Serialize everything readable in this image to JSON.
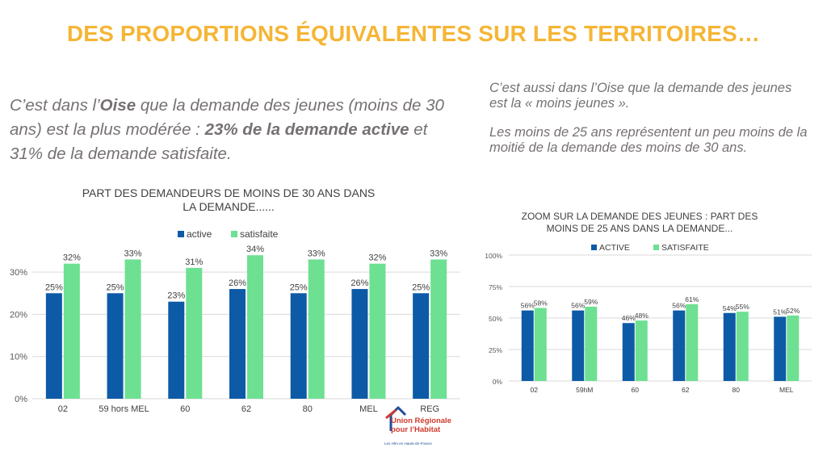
{
  "title": "DES PROPORTIONS ÉQUIVALENTES SUR LES TERRITOIRES…",
  "left_text": {
    "p1": "C’est dans l’",
    "p1_oise": "Oise",
    "p2": " que la demande des jeunes (moins de 30 ans) est la plus modérée : ",
    "p3_bold": "23% de la demande active",
    "p4": " et 31% de la demande satisfaite."
  },
  "right_text": {
    "p1": "C’est aussi dans l’Oise que la demande des jeunes est la « moins jeunes ».",
    "p2": "Les moins de 25 ans représentent un peu moins de la moitié de la demande des moins de 30 ans."
  },
  "colors": {
    "active": "#0d5aa7",
    "satisfaite": "#6de092",
    "title": "#f5b535",
    "text": "#767171",
    "logo_red": "#d13a2d",
    "logo_blue": "#1f4e9c"
  },
  "logo": {
    "line1": "Union Régionale",
    "line2": "pour l’Habitat",
    "tagline": "Les Hlm en Hauts-de-France"
  },
  "chart_data": [
    {
      "type": "bar",
      "title": "PART DES DEMANDEURS DE MOINS DE 30 ANS DANS LA DEMANDE......",
      "title_lines": [
        "PART DES DEMANDEURS DE MOINS DE 30 ANS DANS",
        "LA DEMANDE......"
      ],
      "categories": [
        "02",
        "59 hors MEL",
        "60",
        "62",
        "80",
        "MEL",
        "REG"
      ],
      "series": [
        {
          "name": "active",
          "values": [
            25,
            25,
            23,
            26,
            25,
            26,
            25
          ]
        },
        {
          "name": "satisfaite",
          "values": [
            32,
            33,
            31,
            34,
            33,
            32,
            33
          ]
        }
      ],
      "yticks": [
        0,
        10,
        20,
        30
      ],
      "ylim": [
        0,
        35
      ],
      "grid": true,
      "legend": "top"
    },
    {
      "type": "bar",
      "title": "ZOOM SUR LA DEMANDE DES JEUNES : PART DES MOINS DE 25 ANS DANS LA DEMANDE...",
      "title_lines": [
        "ZOOM SUR LA DEMANDE DES JEUNES : PART DES",
        "MOINS DE 25 ANS DANS LA DEMANDE..."
      ],
      "categories": [
        "02",
        "59hM",
        "60",
        "62",
        "80",
        "MEL"
      ],
      "series": [
        {
          "name": "ACTIVE",
          "values": [
            56,
            56,
            46,
            56,
            54,
            51
          ]
        },
        {
          "name": "SATISFAITE",
          "values": [
            58,
            59,
            48,
            61,
            55,
            52
          ]
        }
      ],
      "yticks": [
        0,
        25,
        50,
        75,
        100
      ],
      "ylim": [
        0,
        100
      ],
      "grid": true,
      "legend": "top"
    }
  ]
}
